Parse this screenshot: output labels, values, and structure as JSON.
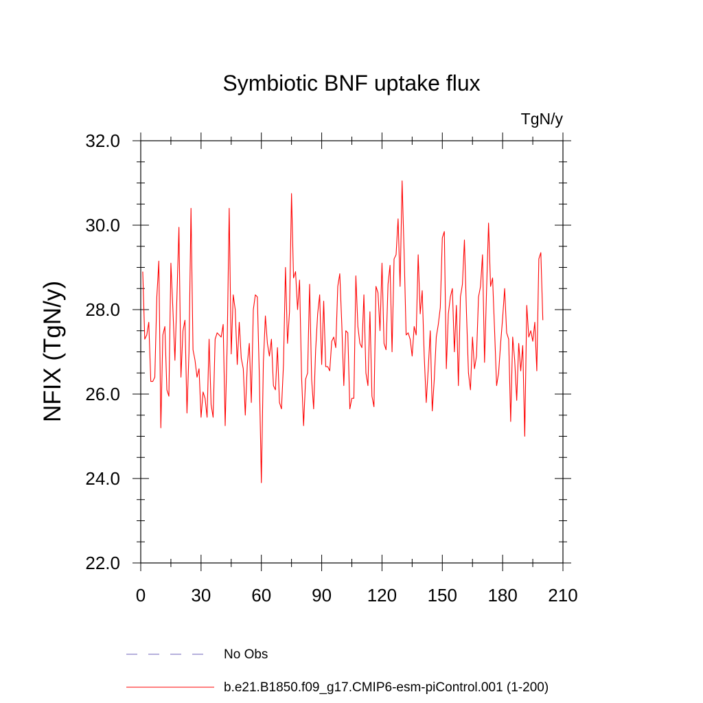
{
  "chart_data": {
    "type": "line",
    "title": "Symbiotic BNF uptake flux",
    "units_label": "TgN/y",
    "ylabel": "NFIX  (TgN/y)",
    "xlabel": "",
    "xlim": [
      0,
      210
    ],
    "ylim": [
      22.0,
      32.0
    ],
    "x_ticks": [
      0,
      30,
      60,
      90,
      120,
      150,
      180,
      210
    ],
    "x_tick_labels": [
      "0",
      "30",
      "60",
      "90",
      "120",
      "150",
      "180",
      "210"
    ],
    "y_ticks": [
      22,
      24,
      26,
      28,
      30,
      32
    ],
    "y_tick_labels": [
      "22.0",
      "24.0",
      "26.0",
      "28.0",
      "30.0",
      "32.0"
    ],
    "grid": false,
    "legend_position": "bottom",
    "colors": {
      "model": "#ff0000",
      "obs": "#8a80c8"
    },
    "series": [
      {
        "name": "No Obs",
        "style": "dashed",
        "values": []
      },
      {
        "name": "b.e21.B1850.f09_g17.CMIP6-esm-piControl.001 (1-200)",
        "style": "solid",
        "x_start": 1,
        "values": [
          28.9,
          27.3,
          27.4,
          27.7,
          26.3,
          26.3,
          26.4,
          28.3,
          29.15,
          25.2,
          27.4,
          27.6,
          26.1,
          25.95,
          29.1,
          28.0,
          26.8,
          28.3,
          29.95,
          26.4,
          27.5,
          27.75,
          25.55,
          27.0,
          30.4,
          27.05,
          26.8,
          26.4,
          26.6,
          25.45,
          26.05,
          25.9,
          25.45,
          27.3,
          25.75,
          25.45,
          27.3,
          27.45,
          27.4,
          27.35,
          27.65,
          25.25,
          27.2,
          30.4,
          26.95,
          28.35,
          28.0,
          26.7,
          27.7,
          26.85,
          26.6,
          25.5,
          26.7,
          27.2,
          25.8,
          28.0,
          28.35,
          28.3,
          26.4,
          23.9,
          26.75,
          27.85,
          27.2,
          26.9,
          27.3,
          26.2,
          26.1,
          27.1,
          25.8,
          25.65,
          26.7,
          29.0,
          27.2,
          27.95,
          30.75,
          28.75,
          28.9,
          28.0,
          28.7,
          26.4,
          25.25,
          26.35,
          26.5,
          28.6,
          26.35,
          25.65,
          27.05,
          27.9,
          28.35,
          26.7,
          28.2,
          26.65,
          26.65,
          26.55,
          27.25,
          27.35,
          27.1,
          28.55,
          28.85,
          27.65,
          26.2,
          27.5,
          27.45,
          25.65,
          25.9,
          25.9,
          28.8,
          27.6,
          27.2,
          27.1,
          28.35,
          26.5,
          26.2,
          27.95,
          25.95,
          25.7,
          28.55,
          28.4,
          27.5,
          29.1,
          27.2,
          27.05,
          28.6,
          29.05,
          27.0,
          29.2,
          29.3,
          30.15,
          28.55,
          31.05,
          29.35,
          27.4,
          27.45,
          27.3,
          26.9,
          27.6,
          27.4,
          29.3,
          27.9,
          28.45,
          26.9,
          25.8,
          26.6,
          27.5,
          25.6,
          26.35,
          27.35,
          27.65,
          28.05,
          29.7,
          29.85,
          26.6,
          27.9,
          28.3,
          28.5,
          27.0,
          28.1,
          26.2,
          28.3,
          28.6,
          29.65,
          27.95,
          26.5,
          26.1,
          27.35,
          26.6,
          26.9,
          28.3,
          28.55,
          29.3,
          26.75,
          28.45,
          30.05,
          28.55,
          28.75,
          27.5,
          26.2,
          26.5,
          27.2,
          27.8,
          28.5,
          27.45,
          27.3,
          25.35,
          27.35,
          26.8,
          25.85,
          27.2,
          26.55,
          27.15,
          25.0,
          28.1,
          27.35,
          27.5,
          27.25,
          27.7,
          26.55,
          29.2,
          29.35,
          27.75
        ]
      }
    ]
  }
}
